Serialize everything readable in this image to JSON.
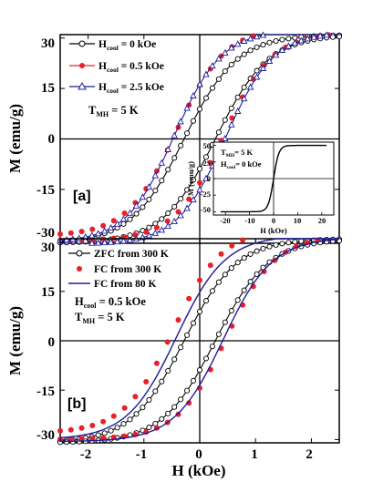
{
  "figure": {
    "xlabel": "H (kOe)",
    "ylabel": "M (emu/g)"
  },
  "colors": {
    "black": "#000000",
    "red": "#e8202a",
    "blue": "#1c1c9c"
  },
  "chart_data": [
    {
      "type": "line",
      "panel_label": "[a]",
      "xlabel": "",
      "ylabel": "M (emu/g)",
      "xlim": [
        -2.5,
        2.5
      ],
      "ylim": [
        -31,
        31
      ],
      "y_ticks": [
        "30",
        "15",
        "0",
        "-15",
        "-30"
      ],
      "annotation": {
        "main": "T",
        "sub": "MH",
        "tail": " = 5 K"
      },
      "series": [
        {
          "name_main": "H",
          "name_sub": "cool",
          "name_tail": " = 0 kOe",
          "color": "#000000",
          "marker": "open-circle",
          "Ms": 31,
          "Hc": 0.28,
          "w": 0.95,
          "dM": 0.0
        },
        {
          "name_main": "H",
          "name_sub": "cool",
          "name_tail": " = 0.5 kOe",
          "color": "#e8202a",
          "marker": "filled-circle",
          "Ms": 31,
          "Hc": 0.42,
          "w": 0.88,
          "dM": 2.2
        },
        {
          "name_main": "H",
          "name_sub": "cool",
          "name_tail": " = 2.5 kOe",
          "color": "#1c1c9c",
          "marker": "open-triangle",
          "Ms": 31.5,
          "Hc": 0.46,
          "w": 0.86,
          "dM": 0.8
        }
      ],
      "inset": {
        "xlabel": "H (kOe)",
        "ylabel": "M (emu/g)",
        "xlim": [
          -25,
          25
        ],
        "ylim": [
          -55,
          55
        ],
        "x_ticks": [
          "-20",
          "-10",
          "0",
          "10",
          "20"
        ],
        "y_ticks": [
          "50",
          "25",
          "0",
          "-25",
          "-50"
        ],
        "text1": {
          "main": "T",
          "sub": "MH",
          "tail": "= 5 K"
        },
        "text2": {
          "main": "H",
          "sub": "cool",
          "tail": "= 0 kOe"
        },
        "Ms": 50,
        "w": 2.2
      }
    },
    {
      "type": "line",
      "panel_label": "[b]",
      "xlabel": "H (kOe)",
      "ylabel": "M (emu/g)",
      "xlim": [
        -2.5,
        2.5
      ],
      "ylim": [
        -31,
        31
      ],
      "x_ticks": [
        "-2",
        "-1",
        "0",
        "1",
        "2"
      ],
      "y_ticks": [
        "30",
        "15",
        "0",
        "-15",
        "-30"
      ],
      "annotation_line1": {
        "main": "H",
        "sub": "cool",
        "tail": " = 0.5 kOe"
      },
      "annotation_line2": {
        "main": "T",
        "sub": "MH",
        "tail": " = 5 K"
      },
      "series": [
        {
          "name": "ZFC from 300 K",
          "color": "#000000",
          "marker": "open-circle",
          "Ms": 31,
          "Hc": 0.28,
          "w": 0.95,
          "dM": 0.0
        },
        {
          "name": "FC from 300 K",
          "color": "#e8202a",
          "marker": "filled-circle",
          "Ms": 31,
          "Hc": 0.48,
          "w": 0.88,
          "dM": 3.0
        },
        {
          "name": "FC from 80 K",
          "color": "#1c1c9c",
          "marker": "line",
          "Ms": 31,
          "Hc": 0.42,
          "w": 0.88,
          "dM": 1.0
        }
      ]
    }
  ]
}
